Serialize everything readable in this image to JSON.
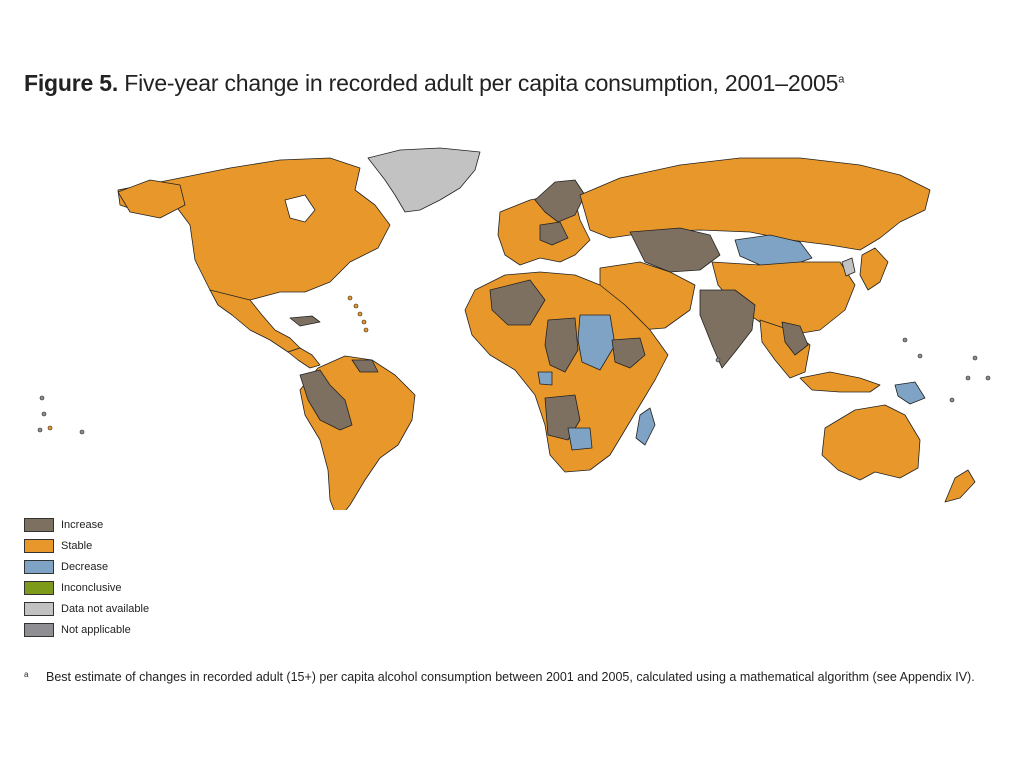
{
  "figure": {
    "number_label": "Figure 5.",
    "title": "Five-year change in recorded adult per capita consumption, 2001–2005",
    "title_note_mark": "a"
  },
  "legend": {
    "items": [
      {
        "label": "Increase",
        "color": "#7d7061"
      },
      {
        "label": "Stable",
        "color": "#e8982a"
      },
      {
        "label": "Decrease",
        "color": "#7fa3c4"
      },
      {
        "label": "Inconclusive",
        "color": "#7d9a1a"
      },
      {
        "label": "Data not available",
        "color": "#c2c2c2"
      },
      {
        "label": "Not applicable",
        "color": "#8f8f93"
      }
    ]
  },
  "footnote": {
    "mark": "a",
    "text": "Best estimate of changes in recorded adult (15+) per capita alcohol consumption between 2001 and 2005, calculated using a mathematical algorithm (see Appendix IV)."
  },
  "colors": {
    "increase": "#7d7061",
    "stable": "#e8982a",
    "decrease": "#7fa3c4",
    "no_data": "#c2c2c2",
    "border": "#222222"
  }
}
